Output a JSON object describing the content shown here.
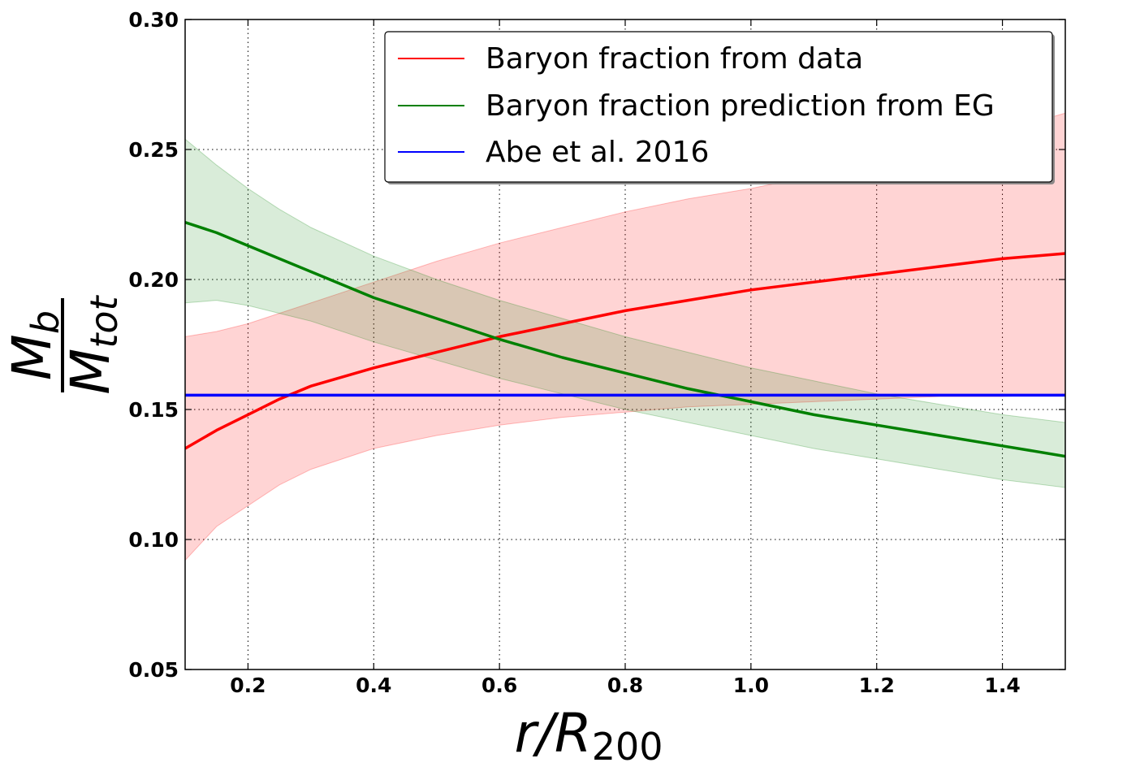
{
  "chart_data": {
    "type": "line",
    "title": "",
    "xlabel": "r/R",
    "xlabel_subscript": "200",
    "ylabel_numerator": "M",
    "ylabel_numerator_sub": "b",
    "ylabel_denominator": "M",
    "ylabel_denominator_sub": "tot",
    "xlim": [
      0.1,
      1.5
    ],
    "ylim": [
      0.05,
      0.3
    ],
    "xticks": [
      0.2,
      0.4,
      0.6,
      0.8,
      1.0,
      1.2,
      1.4
    ],
    "xtick_labels": [
      "0.2",
      "0.4",
      "0.6",
      "0.8",
      "1.0",
      "1.2",
      "1.4"
    ],
    "yticks": [
      0.05,
      0.1,
      0.15,
      0.2,
      0.25,
      0.3
    ],
    "ytick_labels": [
      "0.05",
      "0.10",
      "0.15",
      "0.20",
      "0.25",
      "0.30"
    ],
    "grid": true,
    "legend_position": "top-right",
    "series": [
      {
        "name": "Baryon fraction from data",
        "color": "#ff0000",
        "band_color": "#ff0000",
        "x": [
          0.1,
          0.15,
          0.2,
          0.25,
          0.3,
          0.4,
          0.5,
          0.6,
          0.7,
          0.8,
          0.9,
          1.0,
          1.1,
          1.2,
          1.3,
          1.4,
          1.5
        ],
        "y": [
          0.135,
          0.142,
          0.148,
          0.154,
          0.159,
          0.166,
          0.172,
          0.178,
          0.183,
          0.188,
          0.192,
          0.196,
          0.199,
          0.202,
          0.205,
          0.208,
          0.21
        ],
        "lower": [
          0.092,
          0.105,
          0.113,
          0.121,
          0.127,
          0.135,
          0.14,
          0.144,
          0.147,
          0.149,
          0.151,
          0.152,
          0.153,
          0.154,
          0.155,
          0.155,
          0.156
        ],
        "upper": [
          0.178,
          0.18,
          0.183,
          0.187,
          0.191,
          0.199,
          0.207,
          0.214,
          0.22,
          0.226,
          0.231,
          0.235,
          0.24,
          0.245,
          0.251,
          0.257,
          0.264
        ]
      },
      {
        "name": "Baryon fraction prediction from EG",
        "color": "#008000",
        "band_color": "#008000",
        "x": [
          0.1,
          0.15,
          0.2,
          0.25,
          0.3,
          0.4,
          0.5,
          0.6,
          0.7,
          0.8,
          0.9,
          1.0,
          1.1,
          1.2,
          1.3,
          1.4,
          1.5
        ],
        "y": [
          0.222,
          0.218,
          0.213,
          0.208,
          0.203,
          0.193,
          0.185,
          0.177,
          0.17,
          0.164,
          0.158,
          0.153,
          0.148,
          0.144,
          0.14,
          0.136,
          0.132
        ],
        "lower": [
          0.191,
          0.192,
          0.19,
          0.187,
          0.184,
          0.176,
          0.169,
          0.162,
          0.156,
          0.15,
          0.145,
          0.14,
          0.135,
          0.131,
          0.127,
          0.123,
          0.12
        ],
        "upper": [
          0.254,
          0.244,
          0.235,
          0.227,
          0.22,
          0.209,
          0.2,
          0.192,
          0.185,
          0.178,
          0.172,
          0.166,
          0.161,
          0.156,
          0.152,
          0.148,
          0.145
        ]
      },
      {
        "name": "Abe et al. 2016",
        "color": "#0000ff",
        "x": [
          0.1,
          1.5
        ],
        "y": [
          0.1555,
          0.1555
        ]
      }
    ]
  }
}
